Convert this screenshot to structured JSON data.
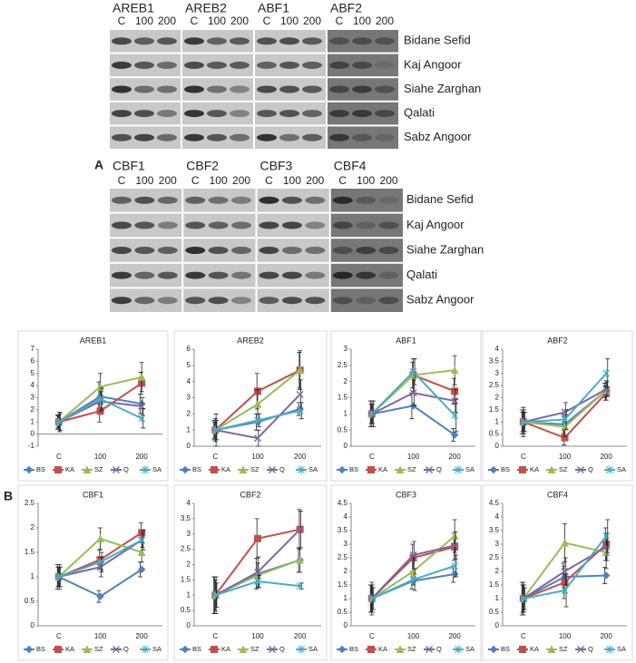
{
  "gels": [
    {
      "genes": [
        "AREB1",
        "AREB2",
        "ABF1",
        "ABF2"
      ],
      "lanes": [
        "C",
        "100",
        "200"
      ],
      "rows": [
        "Bidane Sefid",
        "Kaj Angoor",
        "Siahe Zarghan",
        "Qalati",
        "Sabz Angoor"
      ]
    },
    {
      "genes": [
        "CBF1",
        "CBF2",
        "CBF3",
        "CBF4"
      ],
      "lanes": [
        "C",
        "100",
        "200"
      ],
      "rows": [
        "Bidane Sefid",
        "Kaj Angoor",
        "Siahe Zarghan",
        "Qalati",
        "Sabz Angoor"
      ]
    }
  ],
  "panel_labels": [
    "A",
    "B"
  ],
  "chart_data": [
    {
      "type": "line",
      "title": "AREB1",
      "categories": [
        "C",
        "100",
        "200"
      ],
      "ylim": [
        -1,
        7
      ],
      "yticks": [
        -1,
        0,
        1,
        2,
        3,
        4,
        5,
        6,
        7
      ],
      "series": [
        {
          "name": "BS",
          "color": "#4f81bd",
          "marker": "diamond",
          "values": [
            1,
            3.1,
            2.5
          ],
          "errors": [
            0.6,
            1.2,
            0.8
          ]
        },
        {
          "name": "KA",
          "color": "#c0504d",
          "marker": "square",
          "values": [
            1,
            1.9,
            4.2
          ],
          "errors": [
            0.5,
            0.9,
            0.9
          ]
        },
        {
          "name": "SZ",
          "color": "#9bbb59",
          "marker": "triangle",
          "values": [
            1,
            3.9,
            4.7
          ],
          "errors": [
            0.6,
            1.1,
            1.2
          ]
        },
        {
          "name": "Q",
          "color": "#8064a2",
          "marker": "x",
          "values": [
            1,
            2.7,
            2.3
          ],
          "errors": [
            0.8,
            0.8,
            0.7
          ]
        },
        {
          "name": "SA",
          "color": "#4bacc6",
          "marker": "star",
          "values": [
            1,
            2.9,
            1.3
          ],
          "errors": [
            0.7,
            0.9,
            0.8
          ]
        }
      ]
    },
    {
      "type": "line",
      "title": "AREB2",
      "categories": [
        "C",
        "100",
        "200"
      ],
      "ylim": [
        0,
        6
      ],
      "yticks": [
        0,
        1,
        2,
        3,
        4,
        5,
        6
      ],
      "series": [
        {
          "name": "BS",
          "color": "#4f81bd",
          "marker": "diamond",
          "values": [
            1,
            1.5,
            2.3
          ],
          "errors": [
            0.6,
            0.5,
            0.4
          ]
        },
        {
          "name": "KA",
          "color": "#c0504d",
          "marker": "square",
          "values": [
            1,
            3.4,
            4.7
          ],
          "errors": [
            0.5,
            1.1,
            1.1
          ]
        },
        {
          "name": "SZ",
          "color": "#9bbb59",
          "marker": "triangle",
          "values": [
            1,
            2.6,
            4.7
          ],
          "errors": [
            0.7,
            0.9,
            1.2
          ]
        },
        {
          "name": "Q",
          "color": "#8064a2",
          "marker": "x",
          "values": [
            1,
            0.5,
            3.2
          ],
          "errors": [
            1.0,
            0.5,
            0.9
          ]
        },
        {
          "name": "SA",
          "color": "#4bacc6",
          "marker": "star",
          "values": [
            1,
            1.6,
            2.2
          ],
          "errors": [
            0.6,
            0.4,
            0.5
          ]
        }
      ]
    },
    {
      "type": "line",
      "title": "ABF1",
      "categories": [
        "C",
        "100",
        "200"
      ],
      "ylim": [
        0,
        3
      ],
      "yticks": [
        0,
        0.5,
        1,
        1.5,
        2,
        2.5,
        3
      ],
      "series": [
        {
          "name": "BS",
          "color": "#4f81bd",
          "marker": "diamond",
          "values": [
            1,
            1.25,
            0.35
          ],
          "errors": [
            0.4,
            0.4,
            0.2
          ]
        },
        {
          "name": "KA",
          "color": "#c0504d",
          "marker": "square",
          "values": [
            1,
            2.2,
            1.7
          ],
          "errors": [
            0.3,
            0.4,
            0.4
          ]
        },
        {
          "name": "SZ",
          "color": "#9bbb59",
          "marker": "triangle",
          "values": [
            1,
            2.2,
            2.35
          ],
          "errors": [
            0.4,
            0.5,
            0.45
          ]
        },
        {
          "name": "Q",
          "color": "#8064a2",
          "marker": "x",
          "values": [
            1,
            1.65,
            1.4
          ],
          "errors": [
            0.3,
            0.4,
            0.35
          ]
        },
        {
          "name": "SA",
          "color": "#4bacc6",
          "marker": "star",
          "values": [
            1,
            2.3,
            0.95
          ],
          "errors": [
            0.4,
            0.4,
            0.5
          ]
        }
      ]
    },
    {
      "type": "line",
      "title": "ABF2",
      "categories": [
        "C",
        "100",
        "200"
      ],
      "ylim": [
        0,
        4
      ],
      "yticks": [
        0,
        0.5,
        1,
        1.5,
        2,
        2.5,
        3,
        3.5,
        4
      ],
      "series": [
        {
          "name": "BS",
          "color": "#4f81bd",
          "marker": "diamond",
          "values": [
            1,
            0.9,
            2.3
          ],
          "errors": [
            0.5,
            0.4,
            0.3
          ]
        },
        {
          "name": "KA",
          "color": "#c0504d",
          "marker": "square",
          "values": [
            1,
            0.35,
            2.2
          ],
          "errors": [
            0.4,
            0.3,
            0.3
          ]
        },
        {
          "name": "SZ",
          "color": "#9bbb59",
          "marker": "triangle",
          "values": [
            1,
            0.8,
            2.3
          ],
          "errors": [
            0.6,
            0.4,
            0.4
          ]
        },
        {
          "name": "Q",
          "color": "#8064a2",
          "marker": "x",
          "values": [
            1,
            1.4,
            2.35
          ],
          "errors": [
            0.5,
            0.4,
            0.3
          ]
        },
        {
          "name": "SA",
          "color": "#4bacc6",
          "marker": "star",
          "values": [
            1,
            1.1,
            3
          ],
          "errors": [
            0.4,
            0.4,
            0.6
          ]
        }
      ]
    },
    {
      "type": "line",
      "title": "CBF1",
      "categories": [
        "C",
        "100",
        "200"
      ],
      "ylim": [
        0,
        2.5
      ],
      "yticks": [
        0,
        0.5,
        1,
        1.5,
        2,
        2.5
      ],
      "series": [
        {
          "name": "BS",
          "color": "#4f81bd",
          "marker": "diamond",
          "values": [
            1,
            0.6,
            1.15
          ],
          "errors": [
            0.25,
            0.12,
            0.15
          ]
        },
        {
          "name": "KA",
          "color": "#c0504d",
          "marker": "square",
          "values": [
            1,
            1.35,
            1.9
          ],
          "errors": [
            0.2,
            0.2,
            0.2
          ]
        },
        {
          "name": "SZ",
          "color": "#9bbb59",
          "marker": "triangle",
          "values": [
            1,
            1.78,
            1.5
          ],
          "errors": [
            0.2,
            0.22,
            0.2
          ]
        },
        {
          "name": "Q",
          "color": "#8064a2",
          "marker": "x",
          "values": [
            1,
            1.2,
            1.75
          ],
          "errors": [
            0.25,
            0.2,
            0.15
          ]
        },
        {
          "name": "SA",
          "color": "#4bacc6",
          "marker": "star",
          "values": [
            1,
            1.3,
            1.75
          ],
          "errors": [
            0.2,
            0.2,
            0.2
          ]
        }
      ]
    },
    {
      "type": "line",
      "title": "CBF2",
      "categories": [
        "C",
        "100",
        "200"
      ],
      "ylim": [
        0,
        4
      ],
      "yticks": [
        0,
        0.5,
        1,
        1.5,
        2,
        2.5,
        3,
        3.5,
        4
      ],
      "series": [
        {
          "name": "BS",
          "color": "#4f81bd",
          "marker": "diamond",
          "values": [
            1,
            1.7,
            2.15
          ],
          "errors": [
            0.6,
            0.5,
            0.4
          ]
        },
        {
          "name": "KA",
          "color": "#c0504d",
          "marker": "square",
          "values": [
            1,
            2.85,
            3.15
          ],
          "errors": [
            0.6,
            0.65,
            0.65
          ]
        },
        {
          "name": "SZ",
          "color": "#9bbb59",
          "marker": "triangle",
          "values": [
            1,
            1.65,
            2.15
          ],
          "errors": [
            0.5,
            0.4,
            0.4
          ]
        },
        {
          "name": "Q",
          "color": "#8064a2",
          "marker": "x",
          "values": [
            1,
            1.75,
            3.15
          ],
          "errors": [
            0.6,
            0.5,
            0.6
          ]
        },
        {
          "name": "SA",
          "color": "#4bacc6",
          "marker": "star",
          "values": [
            1,
            1.45,
            1.3
          ],
          "errors": [
            0.4,
            0.2,
            0.1
          ]
        }
      ]
    },
    {
      "type": "line",
      "title": "CBF3",
      "categories": [
        "C",
        "100",
        "200"
      ],
      "ylim": [
        0,
        4.5
      ],
      "yticks": [
        0,
        0.5,
        1,
        1.5,
        2,
        2.5,
        3,
        3.5,
        4,
        4.5
      ],
      "series": [
        {
          "name": "BS",
          "color": "#4f81bd",
          "marker": "diamond",
          "values": [
            1,
            1.65,
            1.9
          ],
          "errors": [
            0.5,
            0.3,
            0.3
          ]
        },
        {
          "name": "KA",
          "color": "#c0504d",
          "marker": "square",
          "values": [
            1,
            2.5,
            2.9
          ],
          "errors": [
            0.5,
            0.5,
            0.5
          ]
        },
        {
          "name": "SZ",
          "color": "#9bbb59",
          "marker": "triangle",
          "values": [
            1,
            2,
            3.3
          ],
          "errors": [
            0.6,
            0.5,
            0.6
          ]
        },
        {
          "name": "Q",
          "color": "#8064a2",
          "marker": "x",
          "values": [
            1,
            2.6,
            2.95
          ],
          "errors": [
            0.5,
            0.5,
            0.5
          ]
        },
        {
          "name": "SA",
          "color": "#4bacc6",
          "marker": "star",
          "values": [
            1,
            1.7,
            2.2
          ],
          "errors": [
            0.4,
            0.4,
            0.4
          ]
        }
      ]
    },
    {
      "type": "line",
      "title": "CBF4",
      "categories": [
        "C",
        "100",
        "200"
      ],
      "ylim": [
        0,
        4.5
      ],
      "yticks": [
        0,
        0.5,
        1,
        1.5,
        2,
        2.5,
        3,
        3.5,
        4,
        4.5
      ],
      "series": [
        {
          "name": "BS",
          "color": "#4f81bd",
          "marker": "diamond",
          "values": [
            1,
            1.8,
            1.85
          ],
          "errors": [
            0.6,
            0.5,
            0.3
          ]
        },
        {
          "name": "KA",
          "color": "#c0504d",
          "marker": "square",
          "values": [
            1,
            1.6,
            3
          ],
          "errors": [
            0.5,
            0.6,
            0.6
          ]
        },
        {
          "name": "SZ",
          "color": "#9bbb59",
          "marker": "triangle",
          "values": [
            1,
            3.05,
            2.7
          ],
          "errors": [
            0.6,
            0.7,
            0.6
          ]
        },
        {
          "name": "Q",
          "color": "#8064a2",
          "marker": "x",
          "values": [
            1,
            2,
            2.9
          ],
          "errors": [
            0.5,
            0.5,
            0.5
          ]
        },
        {
          "name": "SA",
          "color": "#4bacc6",
          "marker": "star",
          "values": [
            1,
            1.3,
            3.3
          ],
          "errors": [
            0.4,
            0.6,
            0.6
          ]
        }
      ]
    }
  ]
}
